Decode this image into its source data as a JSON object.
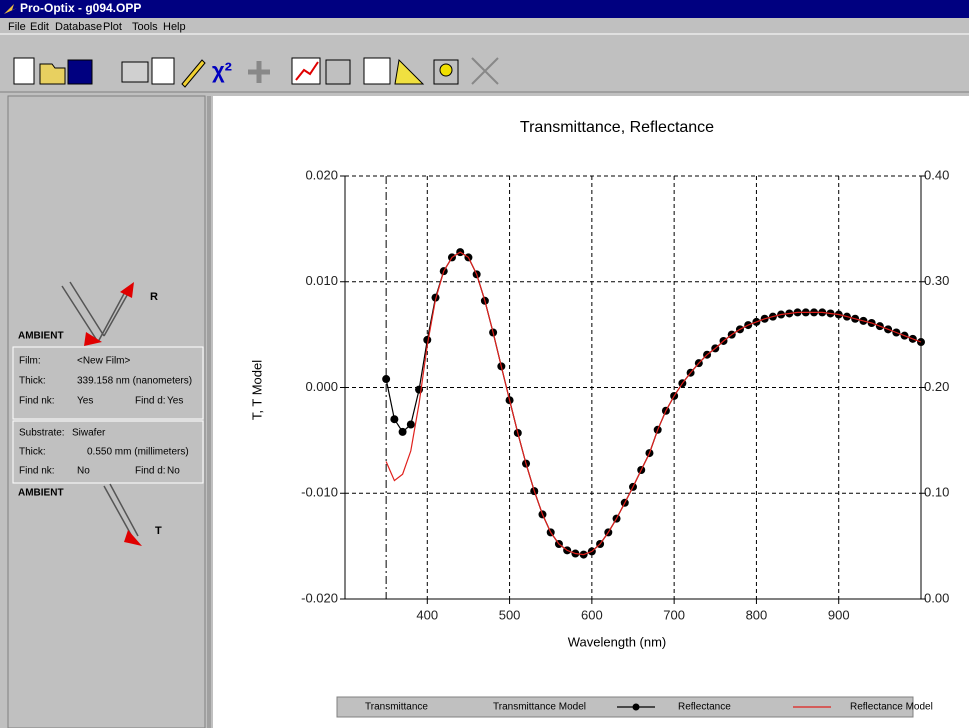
{
  "window": {
    "title": "Pro-Optix - g094.OPP"
  },
  "menu": [
    "File",
    "Edit",
    "Database",
    "Plot",
    "Tools",
    "Help"
  ],
  "structure": {
    "top_medium": "AMBIENT",
    "reflected_label": "R",
    "film": {
      "label": "Film:",
      "name": "<New Film>",
      "thick_label": "Thick:",
      "thick": "339.158 nm (nanometers)",
      "find_nk_label": "Find nk:",
      "find_nk": "Yes",
      "find_d_label": "Find d:",
      "find_d": "Yes"
    },
    "substrate": {
      "label": "Substrate:",
      "name": "Siwafer",
      "thick_label": "Thick:",
      "thick": "0.550 mm (millimeters)",
      "find_nk_label": "Find nk:",
      "find_nk": "No",
      "find_d_label": "Find d:",
      "find_d": "No"
    },
    "bottom_medium": "AMBIENT",
    "transmitted_label": "T"
  },
  "chart_data": {
    "type": "line",
    "title": "Transmittance, Reflectance",
    "x_label": "Wavelength (nm)",
    "y_label": "T, T Model",
    "xlim": [
      300,
      1000
    ],
    "xticks": [
      400,
      500,
      600,
      700,
      800,
      900
    ],
    "ylim": [
      -0.02,
      0.02
    ],
    "yticks": [
      {
        "value": -0.02,
        "label": "-0.020"
      },
      {
        "value": -0.01,
        "label": "-0.010"
      },
      {
        "value": 0,
        "label": "0.000"
      },
      {
        "value": 0.01,
        "label": "0.010"
      },
      {
        "value": 0.02,
        "label": "0.020"
      }
    ],
    "y2lim": [
      0,
      0.4
    ],
    "y2ticks": [
      {
        "value": 0,
        "label": "0.00"
      },
      {
        "value": 0.1,
        "label": "0.10"
      },
      {
        "value": 0.2,
        "label": "0.20"
      },
      {
        "value": 0.3,
        "label": "0.30"
      },
      {
        "value": 0.4,
        "label": "0.40"
      }
    ],
    "grid": true,
    "vlines": [
      350
    ],
    "legend": "bottom",
    "x": [
      350,
      360,
      370,
      380,
      390,
      400,
      410,
      420,
      430,
      440,
      450,
      460,
      470,
      480,
      490,
      500,
      510,
      520,
      530,
      540,
      550,
      560,
      570,
      580,
      590,
      600,
      610,
      620,
      630,
      640,
      650,
      660,
      670,
      680,
      690,
      700,
      710,
      720,
      730,
      740,
      750,
      760,
      770,
      780,
      790,
      800,
      810,
      820,
      830,
      840,
      850,
      860,
      870,
      880,
      890,
      900,
      910,
      920,
      930,
      940,
      950,
      960,
      970,
      980,
      990,
      1000
    ],
    "series": [
      {
        "name": "Transmittance"
      },
      {
        "name": "Transmittance Model"
      },
      {
        "name": "Reflectance",
        "color": "#000000",
        "markers": true,
        "axis": "y2",
        "values": [
          0.208,
          0.17,
          0.158,
          0.165,
          0.198,
          0.245,
          0.285,
          0.31,
          0.323,
          0.328,
          0.323,
          0.307,
          0.282,
          0.252,
          0.22,
          0.188,
          0.157,
          0.128,
          0.102,
          0.08,
          0.063,
          0.052,
          0.046,
          0.043,
          0.042,
          0.045,
          0.052,
          0.063,
          0.076,
          0.091,
          0.106,
          0.122,
          0.138,
          0.16,
          0.178,
          0.192,
          0.204,
          0.214,
          0.223,
          0.231,
          0.237,
          0.244,
          0.25,
          0.255,
          0.259,
          0.262,
          0.265,
          0.267,
          0.269,
          0.27,
          0.271,
          0.271,
          0.271,
          0.271,
          0.27,
          0.269,
          0.267,
          0.265,
          0.263,
          0.261,
          0.258,
          0.255,
          0.252,
          0.249,
          0.246,
          0.243
        ]
      },
      {
        "name": "Reflectance Model",
        "color": "#e0201c",
        "markers": false,
        "axis": "y2",
        "values": [
          0.13,
          0.112,
          0.118,
          0.14,
          0.185,
          0.24,
          0.283,
          0.31,
          0.323,
          0.328,
          0.323,
          0.307,
          0.282,
          0.252,
          0.22,
          0.188,
          0.157,
          0.128,
          0.102,
          0.08,
          0.063,
          0.052,
          0.046,
          0.043,
          0.042,
          0.045,
          0.052,
          0.063,
          0.076,
          0.091,
          0.106,
          0.122,
          0.138,
          0.16,
          0.178,
          0.192,
          0.204,
          0.214,
          0.223,
          0.231,
          0.237,
          0.244,
          0.25,
          0.255,
          0.259,
          0.262,
          0.265,
          0.267,
          0.269,
          0.27,
          0.271,
          0.271,
          0.271,
          0.271,
          0.27,
          0.269,
          0.267,
          0.265,
          0.263,
          0.261,
          0.258,
          0.255,
          0.252,
          0.249,
          0.246,
          0.243
        ]
      }
    ]
  }
}
